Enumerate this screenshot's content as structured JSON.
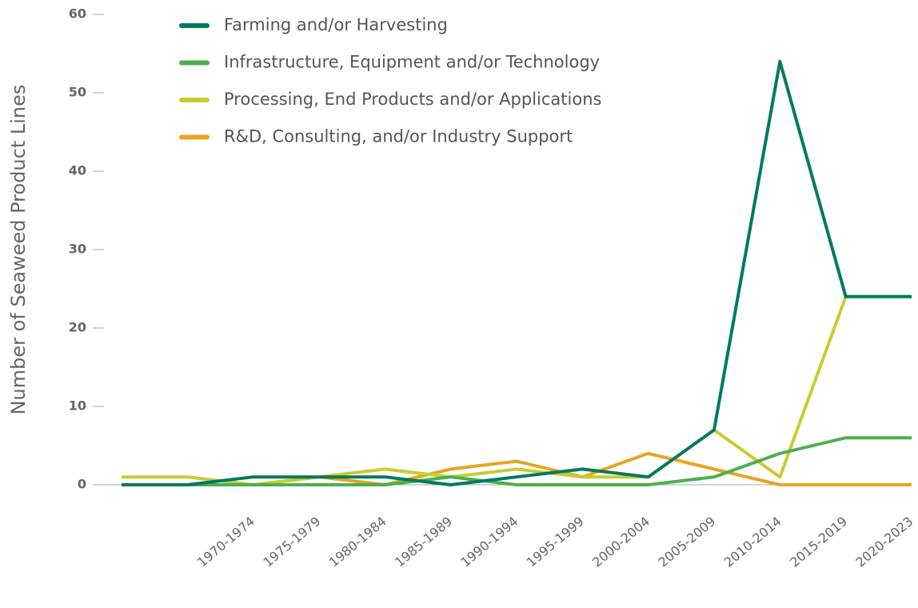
{
  "chart_data": {
    "type": "line",
    "y_label": "Number of Seaweed Product Lines",
    "categories": [
      null,
      null,
      "1970-1974",
      "1975-1979",
      "1980-1984",
      "1985-1989",
      "1990-1994",
      "1995-1999",
      "2000-2004",
      "2005-2009",
      "2010-2014",
      "2015-2019",
      "2020-2023"
    ],
    "series": [
      {
        "name": "Farming and/or Harvesting",
        "color": "#007a5e",
        "values": [
          0,
          0,
          1,
          1,
          1,
          0,
          1,
          2,
          1,
          7,
          54,
          24,
          24
        ]
      },
      {
        "name": "Infrastructure, Equipment and/or Technology",
        "color": "#4caf50",
        "values": [
          0,
          0,
          0,
          0,
          0,
          1,
          0,
          0,
          0,
          1,
          4,
          6,
          6
        ]
      },
      {
        "name": "Processing, End Products and/or Applications",
        "color": "#c8cc2f",
        "values": [
          1,
          1,
          0,
          1,
          2,
          1,
          2,
          1,
          1,
          7,
          1,
          24,
          24
        ]
      },
      {
        "name": "R&D, Consulting, and/or Industry Support",
        "color": "#e8a41e",
        "values": [
          0,
          0,
          0,
          1,
          0,
          2,
          3,
          1,
          4,
          2,
          0,
          0,
          0
        ]
      }
    ],
    "ylim": [
      0,
      60
    ],
    "yticks": [
      0,
      10,
      20,
      30,
      40,
      50,
      60
    ],
    "grid": false,
    "legend": "top-left"
  }
}
